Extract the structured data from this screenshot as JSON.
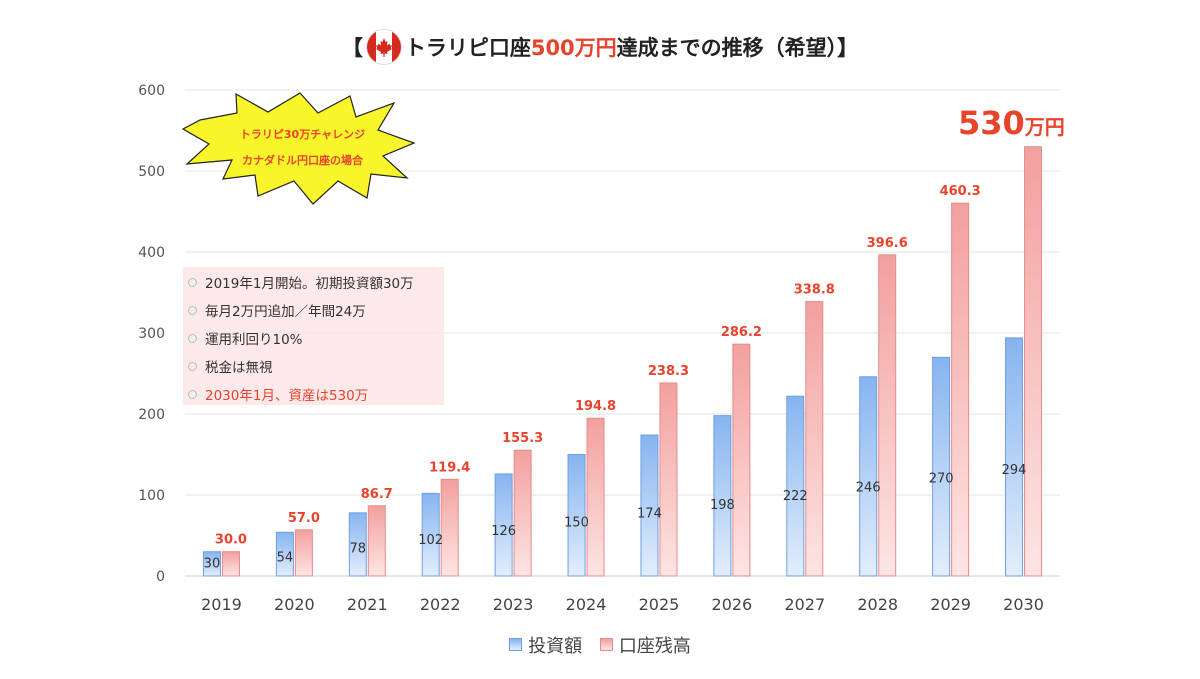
{
  "title": {
    "prefix": "【",
    "part1": "トラリピ口座",
    "highlight": "500万円",
    "part2": "達成までの推移（希望）",
    "suffix": "】"
  },
  "burst": {
    "line1": "トラリピ30万チャレンジ",
    "line2": "カナダドル円口座の場合"
  },
  "notes": [
    "2019年1月開始。初期投資額30万",
    "毎月2万円追加／年間24万",
    "運用利回り10%",
    "税金は無視",
    "2030年1月、資産は530万"
  ],
  "final_callout": {
    "value": "530",
    "unit": "万円"
  },
  "colors": {
    "invest": "#8fb9f0",
    "invest_edge": "#6f9fe0",
    "balance": "#f3a6a4",
    "balance_edge": "#e58c8a",
    "red": "#e8432c"
  },
  "chart_data": {
    "type": "bar",
    "categories": [
      "2019",
      "2020",
      "2021",
      "2022",
      "2023",
      "2024",
      "2025",
      "2026",
      "2027",
      "2028",
      "2029",
      "2030"
    ],
    "series": [
      {
        "name": "投資額",
        "values": [
          30,
          54,
          78,
          102,
          126,
          150,
          174,
          198,
          222,
          246,
          270,
          294
        ],
        "labels": [
          "30",
          "54",
          "78",
          "102",
          "126",
          "150",
          "174",
          "198",
          "222",
          "246",
          "270",
          "294"
        ]
      },
      {
        "name": "口座残高",
        "values": [
          30.0,
          57.0,
          86.7,
          119.4,
          155.3,
          194.8,
          238.3,
          286.2,
          338.8,
          396.6,
          460.3,
          530
        ],
        "labels": [
          "30.0",
          "57.0",
          "86.7",
          "119.4",
          "155.3",
          "194.8",
          "238.3",
          "286.2",
          "338.8",
          "396.6",
          "460.3",
          ""
        ]
      }
    ],
    "yticks": [
      "0",
      "100",
      "200",
      "300",
      "400",
      "500",
      "600"
    ],
    "ylim": [
      0,
      600
    ],
    "grid": true,
    "legend_position": "bottom"
  }
}
